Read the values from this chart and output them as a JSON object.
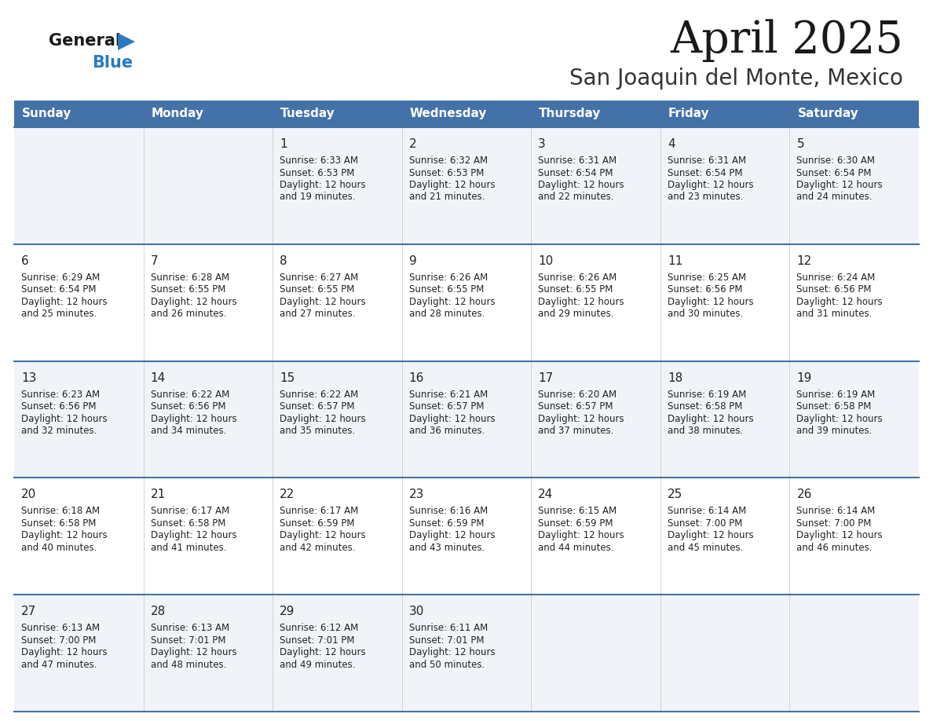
{
  "title": "April 2025",
  "subtitle": "San Joaquin del Monte, Mexico",
  "header_bg_color": "#4472a8",
  "header_text_color": "#ffffff",
  "day_names": [
    "Sunday",
    "Monday",
    "Tuesday",
    "Wednesday",
    "Thursday",
    "Friday",
    "Saturday"
  ],
  "row_line_color": "#4472a8",
  "text_color": "#222222",
  "title_color": "#1a1a1a",
  "subtitle_color": "#333333",
  "logo_color1": "#1a1a1a",
  "logo_color2": "#2a7abf",
  "logo_triangle_color": "#2a7abf",
  "cell_bg_colors": [
    "#f0f4f8",
    "#ffffff",
    "#f0f4f8",
    "#ffffff",
    "#f0f4f8"
  ],
  "weeks": [
    [
      {
        "day": "",
        "sunrise": "",
        "sunset": "",
        "daylight": ""
      },
      {
        "day": "",
        "sunrise": "",
        "sunset": "",
        "daylight": ""
      },
      {
        "day": "1",
        "sunrise": "6:33 AM",
        "sunset": "6:53 PM",
        "daylight": "12 hours\nand 19 minutes."
      },
      {
        "day": "2",
        "sunrise": "6:32 AM",
        "sunset": "6:53 PM",
        "daylight": "12 hours\nand 21 minutes."
      },
      {
        "day": "3",
        "sunrise": "6:31 AM",
        "sunset": "6:54 PM",
        "daylight": "12 hours\nand 22 minutes."
      },
      {
        "day": "4",
        "sunrise": "6:31 AM",
        "sunset": "6:54 PM",
        "daylight": "12 hours\nand 23 minutes."
      },
      {
        "day": "5",
        "sunrise": "6:30 AM",
        "sunset": "6:54 PM",
        "daylight": "12 hours\nand 24 minutes."
      }
    ],
    [
      {
        "day": "6",
        "sunrise": "6:29 AM",
        "sunset": "6:54 PM",
        "daylight": "12 hours\nand 25 minutes."
      },
      {
        "day": "7",
        "sunrise": "6:28 AM",
        "sunset": "6:55 PM",
        "daylight": "12 hours\nand 26 minutes."
      },
      {
        "day": "8",
        "sunrise": "6:27 AM",
        "sunset": "6:55 PM",
        "daylight": "12 hours\nand 27 minutes."
      },
      {
        "day": "9",
        "sunrise": "6:26 AM",
        "sunset": "6:55 PM",
        "daylight": "12 hours\nand 28 minutes."
      },
      {
        "day": "10",
        "sunrise": "6:26 AM",
        "sunset": "6:55 PM",
        "daylight": "12 hours\nand 29 minutes."
      },
      {
        "day": "11",
        "sunrise": "6:25 AM",
        "sunset": "6:56 PM",
        "daylight": "12 hours\nand 30 minutes."
      },
      {
        "day": "12",
        "sunrise": "6:24 AM",
        "sunset": "6:56 PM",
        "daylight": "12 hours\nand 31 minutes."
      }
    ],
    [
      {
        "day": "13",
        "sunrise": "6:23 AM",
        "sunset": "6:56 PM",
        "daylight": "12 hours\nand 32 minutes."
      },
      {
        "day": "14",
        "sunrise": "6:22 AM",
        "sunset": "6:56 PM",
        "daylight": "12 hours\nand 34 minutes."
      },
      {
        "day": "15",
        "sunrise": "6:22 AM",
        "sunset": "6:57 PM",
        "daylight": "12 hours\nand 35 minutes."
      },
      {
        "day": "16",
        "sunrise": "6:21 AM",
        "sunset": "6:57 PM",
        "daylight": "12 hours\nand 36 minutes."
      },
      {
        "day": "17",
        "sunrise": "6:20 AM",
        "sunset": "6:57 PM",
        "daylight": "12 hours\nand 37 minutes."
      },
      {
        "day": "18",
        "sunrise": "6:19 AM",
        "sunset": "6:58 PM",
        "daylight": "12 hours\nand 38 minutes."
      },
      {
        "day": "19",
        "sunrise": "6:19 AM",
        "sunset": "6:58 PM",
        "daylight": "12 hours\nand 39 minutes."
      }
    ],
    [
      {
        "day": "20",
        "sunrise": "6:18 AM",
        "sunset": "6:58 PM",
        "daylight": "12 hours\nand 40 minutes."
      },
      {
        "day": "21",
        "sunrise": "6:17 AM",
        "sunset": "6:58 PM",
        "daylight": "12 hours\nand 41 minutes."
      },
      {
        "day": "22",
        "sunrise": "6:17 AM",
        "sunset": "6:59 PM",
        "daylight": "12 hours\nand 42 minutes."
      },
      {
        "day": "23",
        "sunrise": "6:16 AM",
        "sunset": "6:59 PM",
        "daylight": "12 hours\nand 43 minutes."
      },
      {
        "day": "24",
        "sunrise": "6:15 AM",
        "sunset": "6:59 PM",
        "daylight": "12 hours\nand 44 minutes."
      },
      {
        "day": "25",
        "sunrise": "6:14 AM",
        "sunset": "7:00 PM",
        "daylight": "12 hours\nand 45 minutes."
      },
      {
        "day": "26",
        "sunrise": "6:14 AM",
        "sunset": "7:00 PM",
        "daylight": "12 hours\nand 46 minutes."
      }
    ],
    [
      {
        "day": "27",
        "sunrise": "6:13 AM",
        "sunset": "7:00 PM",
        "daylight": "12 hours\nand 47 minutes."
      },
      {
        "day": "28",
        "sunrise": "6:13 AM",
        "sunset": "7:01 PM",
        "daylight": "12 hours\nand 48 minutes."
      },
      {
        "day": "29",
        "sunrise": "6:12 AM",
        "sunset": "7:01 PM",
        "daylight": "12 hours\nand 49 minutes."
      },
      {
        "day": "30",
        "sunrise": "6:11 AM",
        "sunset": "7:01 PM",
        "daylight": "12 hours\nand 50 minutes."
      },
      {
        "day": "",
        "sunrise": "",
        "sunset": "",
        "daylight": ""
      },
      {
        "day": "",
        "sunrise": "",
        "sunset": "",
        "daylight": ""
      },
      {
        "day": "",
        "sunrise": "",
        "sunset": "",
        "daylight": ""
      }
    ]
  ]
}
